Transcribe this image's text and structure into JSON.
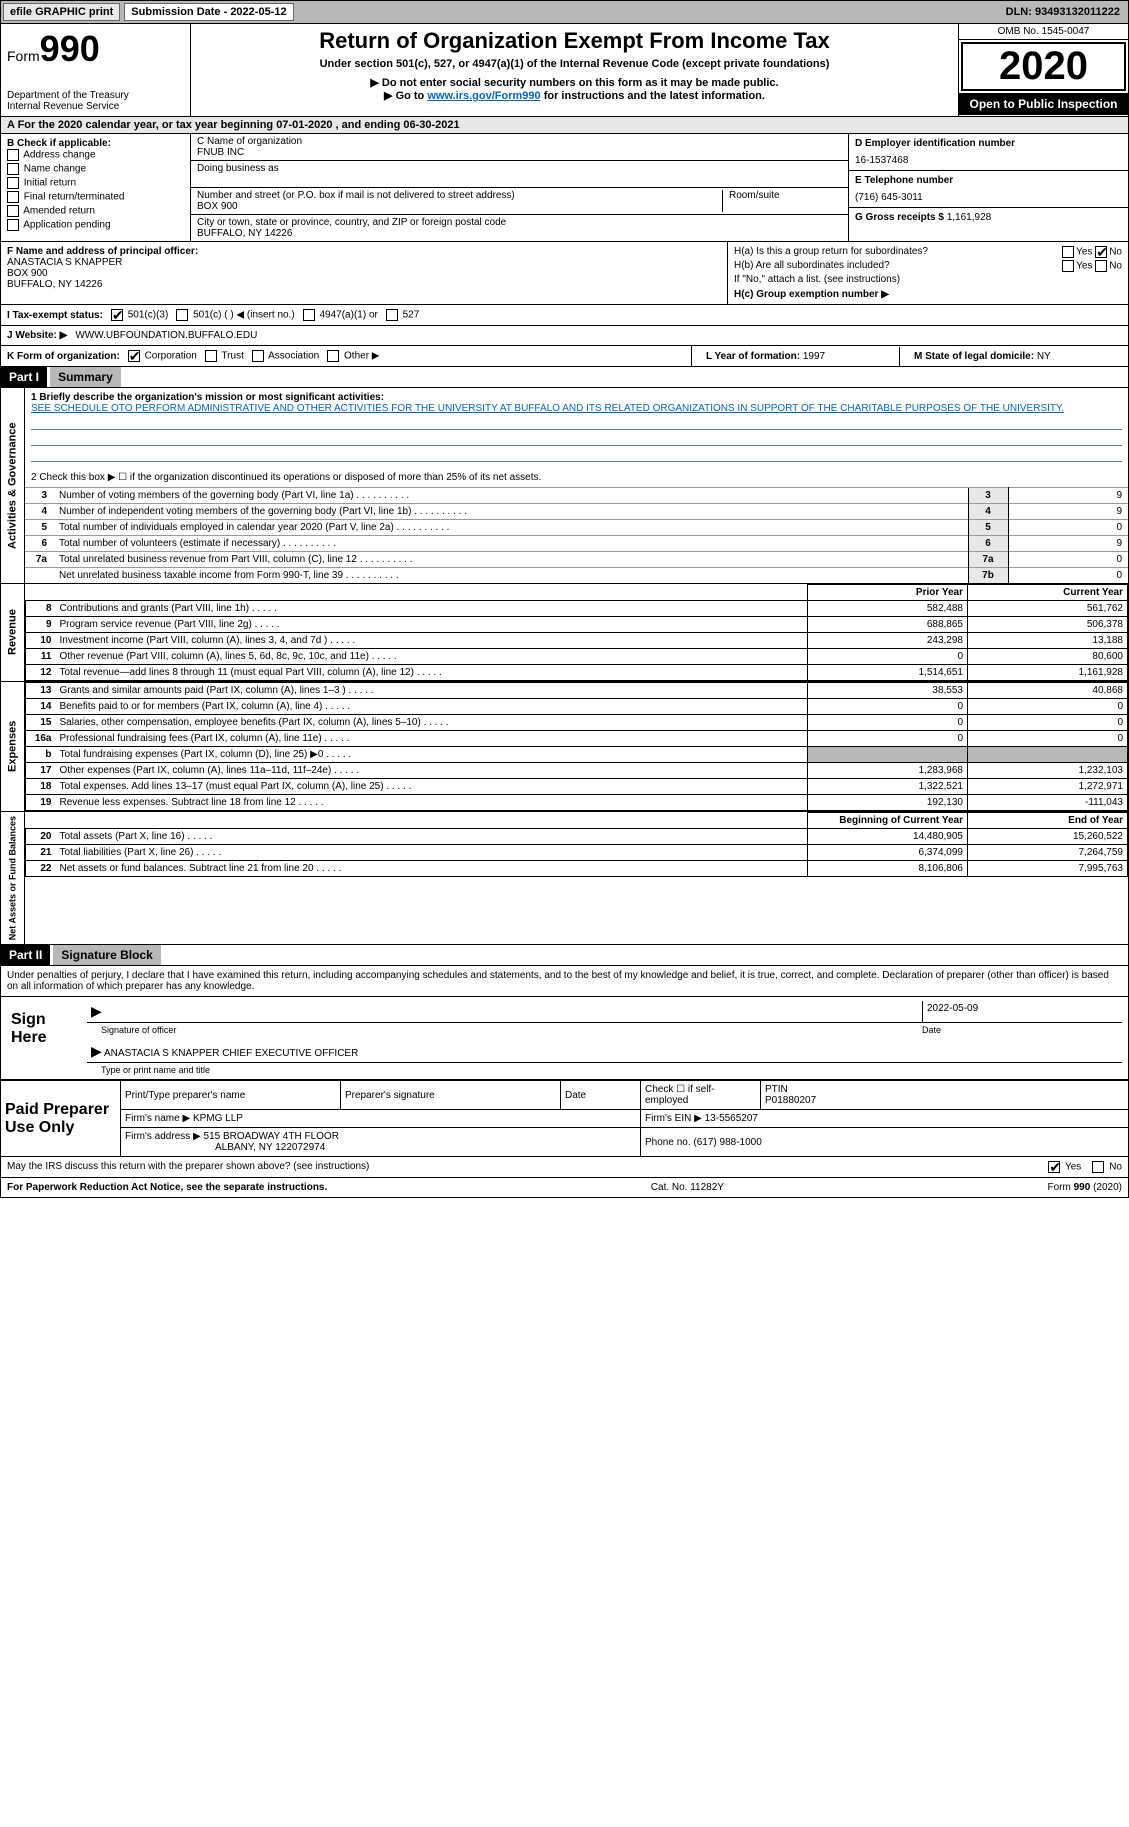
{
  "topbar": {
    "efile": "efile GRAPHIC print",
    "sub_label": "Submission Date - 2022-05-12",
    "dln": "DLN: 93493132011222"
  },
  "header": {
    "form_prefix": "Form",
    "form_num": "990",
    "dept": "Department of the Treasury\nInternal Revenue Service",
    "title": "Return of Organization Exempt From Income Tax",
    "subtitle": "Under section 501(c), 527, or 4947(a)(1) of the Internal Revenue Code (except private foundations)",
    "note1": "▶ Do not enter social security numbers on this form as it may be made public.",
    "note2_pre": "▶ Go to ",
    "note2_link": "www.irs.gov/Form990",
    "note2_post": " for instructions and the latest information.",
    "omb": "OMB No. 1545-0047",
    "year": "2020",
    "inspect": "Open to Public Inspection"
  },
  "row_a": "A For the 2020 calendar year, or tax year beginning 07-01-2020   , and ending 06-30-2021",
  "col_b": {
    "title": "B Check if applicable:",
    "items": [
      "Address change",
      "Name change",
      "Initial return",
      "Final return/terminated",
      "Amended return",
      "Application pending"
    ]
  },
  "col_c": {
    "name_label": "C Name of organization",
    "name": "FNUB INC",
    "dba_label": "Doing business as",
    "addr_label": "Number and street (or P.O. box if mail is not delivered to street address)",
    "addr": "BOX 900",
    "room_label": "Room/suite",
    "city_label": "City or town, state or province, country, and ZIP or foreign postal code",
    "city": "BUFFALO, NY  14226"
  },
  "col_d": {
    "ein_label": "D Employer identification number",
    "ein": "16-1537468",
    "tel_label": "E Telephone number",
    "tel": "(716) 645-3011",
    "gross_label": "G Gross receipts $",
    "gross": "1,161,928"
  },
  "col_f": {
    "label": "F  Name and address of principal officer:",
    "name": "ANASTACIA S KNAPPER",
    "addr1": "BOX 900",
    "addr2": "BUFFALO, NY  14226"
  },
  "col_h": {
    "a_label": "H(a)  Is this a group return for subordinates?",
    "a_yes": "Yes",
    "a_no": "No",
    "b_label": "H(b)  Are all subordinates included?",
    "b_yes": "Yes",
    "b_no": "No",
    "b_note": "If \"No,\" attach a list. (see instructions)",
    "c_label": "H(c)  Group exemption number ▶"
  },
  "row_i": {
    "label": "I   Tax-exempt status:",
    "c3": "501(c)(3)",
    "c": "501(c) (  ) ◀ (insert no.)",
    "a1": "4947(a)(1) or",
    "527": "527"
  },
  "row_j": {
    "label": "J   Website: ▶",
    "url": "WWW.UBFOUNDATION.BUFFALO.EDU"
  },
  "row_k": {
    "label": "K Form of organization:",
    "corp": "Corporation",
    "trust": "Trust",
    "assoc": "Association",
    "other": "Other ▶",
    "l_label": "L Year of formation:",
    "l_val": "1997",
    "m_label": "M State of legal domicile:",
    "m_val": "NY"
  },
  "part1": {
    "header": "Part I",
    "title": "Summary",
    "q1_label": "1   Briefly describe the organization's mission or most significant activities:",
    "q1_text": "SEE SCHEDULE OTO PERFORM ADMINISTRATIVE AND OTHER ACTIVITIES FOR THE UNIVERSITY AT BUFFALO AND ITS RELATED ORGANIZATIONS IN SUPPORT OF THE CHARITABLE PURPOSES OF THE UNIVERSITY.",
    "q2": "2   Check this box ▶ ☐  if the organization discontinued its operations or disposed of more than 25% of its net assets.",
    "gov_section": "Activities & Governance",
    "rev_section": "Revenue",
    "exp_section": "Expenses",
    "net_section": "Net Assets or Fund Balances",
    "lines_gov": [
      {
        "n": "3",
        "d": "Number of voting members of the governing body (Part VI, line 1a)",
        "box": "3",
        "v": "9"
      },
      {
        "n": "4",
        "d": "Number of independent voting members of the governing body (Part VI, line 1b)",
        "box": "4",
        "v": "9"
      },
      {
        "n": "5",
        "d": "Total number of individuals employed in calendar year 2020 (Part V, line 2a)",
        "box": "5",
        "v": "0"
      },
      {
        "n": "6",
        "d": "Total number of volunteers (estimate if necessary)",
        "box": "6",
        "v": "9"
      },
      {
        "n": "7a",
        "d": "Total unrelated business revenue from Part VIII, column (C), line 12",
        "box": "7a",
        "v": "0"
      },
      {
        "n": "",
        "d": "Net unrelated business taxable income from Form 990-T, line 39",
        "box": "7b",
        "v": "0"
      }
    ],
    "py_header": "Prior Year",
    "cy_header": "Current Year",
    "lines_rev": [
      {
        "n": "8",
        "d": "Contributions and grants (Part VIII, line 1h)",
        "py": "582,488",
        "cy": "561,762"
      },
      {
        "n": "9",
        "d": "Program service revenue (Part VIII, line 2g)",
        "py": "688,865",
        "cy": "506,378"
      },
      {
        "n": "10",
        "d": "Investment income (Part VIII, column (A), lines 3, 4, and 7d )",
        "py": "243,298",
        "cy": "13,188"
      },
      {
        "n": "11",
        "d": "Other revenue (Part VIII, column (A), lines 5, 6d, 8c, 9c, 10c, and 11e)",
        "py": "0",
        "cy": "80,600"
      },
      {
        "n": "12",
        "d": "Total revenue—add lines 8 through 11 (must equal Part VIII, column (A), line 12)",
        "py": "1,514,651",
        "cy": "1,161,928"
      }
    ],
    "lines_exp": [
      {
        "n": "13",
        "d": "Grants and similar amounts paid (Part IX, column (A), lines 1–3 )",
        "py": "38,553",
        "cy": "40,868"
      },
      {
        "n": "14",
        "d": "Benefits paid to or for members (Part IX, column (A), line 4)",
        "py": "0",
        "cy": "0"
      },
      {
        "n": "15",
        "d": "Salaries, other compensation, employee benefits (Part IX, column (A), lines 5–10)",
        "py": "0",
        "cy": "0"
      },
      {
        "n": "16a",
        "d": "Professional fundraising fees (Part IX, column (A), line 11e)",
        "py": "0",
        "cy": "0"
      },
      {
        "n": "b",
        "d": "Total fundraising expenses (Part IX, column (D), line 25) ▶0",
        "py": "",
        "cy": "",
        "shaded": true
      },
      {
        "n": "17",
        "d": "Other expenses (Part IX, column (A), lines 11a–11d, 11f–24e)",
        "py": "1,283,968",
        "cy": "1,232,103"
      },
      {
        "n": "18",
        "d": "Total expenses. Add lines 13–17 (must equal Part IX, column (A), line 25)",
        "py": "1,322,521",
        "cy": "1,272,971"
      },
      {
        "n": "19",
        "d": "Revenue less expenses. Subtract line 18 from line 12",
        "py": "192,130",
        "cy": "-111,043"
      }
    ],
    "boy_header": "Beginning of Current Year",
    "eoy_header": "End of Year",
    "lines_net": [
      {
        "n": "20",
        "d": "Total assets (Part X, line 16)",
        "py": "14,480,905",
        "cy": "15,260,522"
      },
      {
        "n": "21",
        "d": "Total liabilities (Part X, line 26)",
        "py": "6,374,099",
        "cy": "7,264,759"
      },
      {
        "n": "22",
        "d": "Net assets or fund balances. Subtract line 21 from line 20",
        "py": "8,106,806",
        "cy": "7,995,763"
      }
    ]
  },
  "part2": {
    "header": "Part II",
    "title": "Signature Block",
    "decl": "Under penalties of perjury, I declare that I have examined this return, including accompanying schedules and statements, and to the best of my knowledge and belief, it is true, correct, and complete. Declaration of preparer (other than officer) is based on all information of which preparer has any knowledge.",
    "sign_here": "Sign Here",
    "sig_officer": "Signature of officer",
    "sig_date": "2022-05-09",
    "date_label": "Date",
    "officer_name": "ANASTACIA S KNAPPER  CHIEF EXECUTIVE OFFICER",
    "type_name": "Type or print name and title",
    "paid_prep": "Paid Preparer Use Only",
    "prep_name_label": "Print/Type preparer's name",
    "prep_sig_label": "Preparer's signature",
    "prep_date_label": "Date",
    "prep_check": "Check ☐ if self-employed",
    "ptin_label": "PTIN",
    "ptin": "P01880207",
    "firm_name_label": "Firm's name   ▶",
    "firm_name": "KPMG LLP",
    "firm_ein_label": "Firm's EIN ▶",
    "firm_ein": "13-5565207",
    "firm_addr_label": "Firm's address ▶",
    "firm_addr1": "515 BROADWAY 4TH FLOOR",
    "firm_addr2": "ALBANY, NY  122072974",
    "phone_label": "Phone no.",
    "phone": "(617) 988-1000",
    "discuss": "May the IRS discuss this return with the preparer shown above? (see instructions)",
    "yes": "Yes",
    "no": "No"
  },
  "footer": {
    "left": "For Paperwork Reduction Act Notice, see the separate instructions.",
    "mid": "Cat. No. 11282Y",
    "right": "Form 990 (2020)"
  }
}
